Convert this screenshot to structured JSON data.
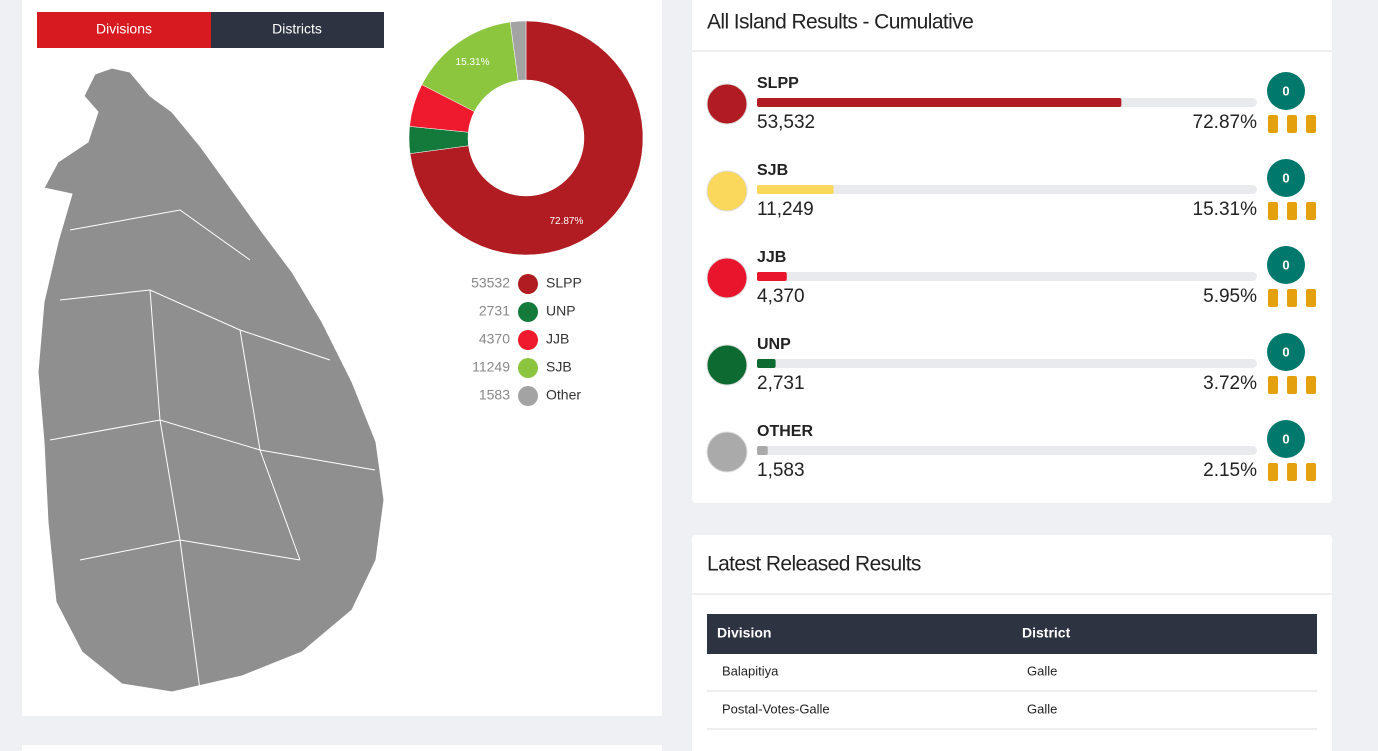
{
  "tabs": [
    "Divisions",
    "Districts"
  ],
  "chart_data": {
    "type": "pie",
    "donut": true,
    "categories": [
      "SLPP",
      "UNP",
      "JJB",
      "SJB",
      "Other"
    ],
    "values": [
      53532,
      2731,
      4370,
      11249,
      1583
    ],
    "colors": [
      "#b01c22",
      "#137a3b",
      "#ef1a2d",
      "#8cc63f",
      "#a3a3a3"
    ],
    "slice_labels": [
      "72.87%",
      null,
      null,
      "15.31%",
      null
    ]
  },
  "results": {
    "title": "All Island Results - Cumulative",
    "parties": [
      {
        "name": "SLPP",
        "votes": "53,532",
        "percent": {
          "value": 72.87,
          "label": "72.87%"
        },
        "seats": 0,
        "color": "#b11c24"
      },
      {
        "name": "SJB",
        "votes": "11,249",
        "percent": {
          "value": 15.31,
          "label": "15.31%"
        },
        "seats": 0,
        "color": "#f9d85b"
      },
      {
        "name": "JJB",
        "votes": "4,370",
        "percent": {
          "value": 5.95,
          "label": "5.95%"
        },
        "seats": 0,
        "color": "#e8152c"
      },
      {
        "name": "UNP",
        "votes": "2,731",
        "percent": {
          "value": 3.72,
          "label": "3.72%"
        },
        "seats": 0,
        "color": "#0d6b32"
      },
      {
        "name": "OTHER",
        "votes": "1,583",
        "percent": {
          "value": 2.15,
          "label": "2.15%"
        },
        "seats": 0,
        "color": "#aaaaaa"
      }
    ]
  },
  "latest": {
    "title": "Latest Released Results",
    "headers": [
      "Division",
      "District"
    ],
    "rows": [
      [
        "Balapitiya",
        "Galle"
      ],
      [
        "Postal-Votes-Galle",
        "Galle"
      ]
    ]
  }
}
